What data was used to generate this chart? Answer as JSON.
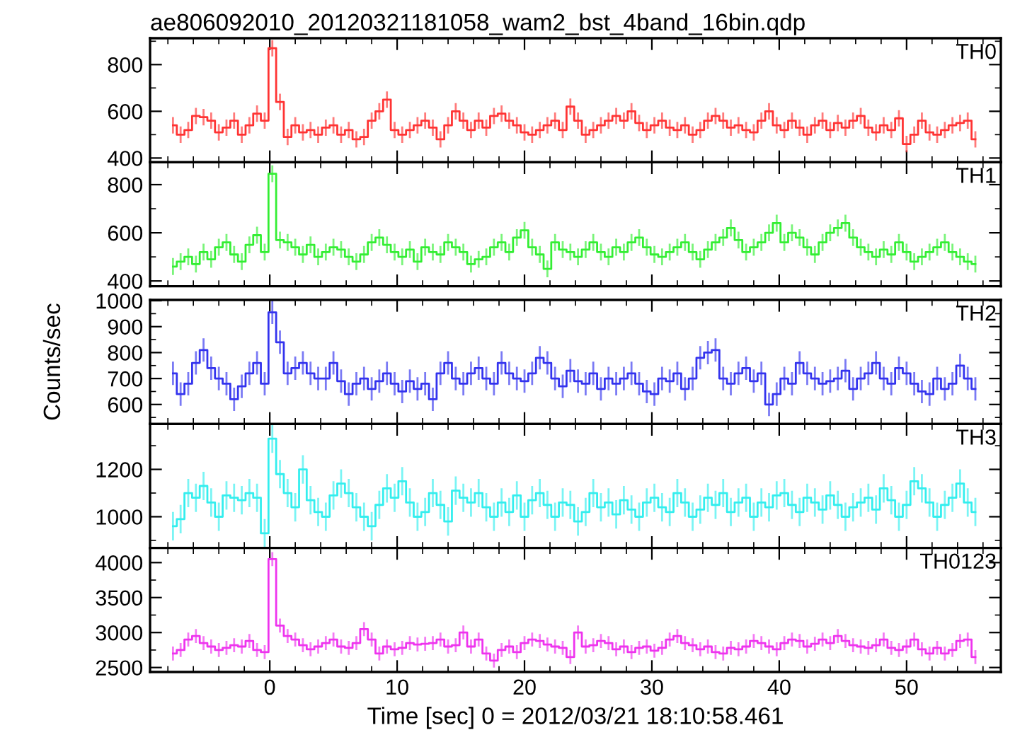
{
  "chart_data": [
    {
      "type": "step",
      "title": "ae806092010_20120321181058_wam2_bst_4band_16bin.qdp",
      "tick_labels": "y",
      "xlim": [
        -9.4,
        57.4
      ],
      "xticks": [
        0,
        10,
        20,
        30,
        40,
        50
      ],
      "ylim": [
        382,
        913
      ],
      "yticks": [
        400,
        600,
        800
      ],
      "x": [
        -7.6,
        -7.0,
        -6.4,
        -5.8,
        -5.2,
        -4.6,
        -4.0,
        -3.4,
        -2.8,
        -2.2,
        -1.6,
        -1.0,
        -0.4,
        0.2,
        0.8,
        1.4,
        2.0,
        2.6,
        3.2,
        3.8,
        4.4,
        5.0,
        5.6,
        6.2,
        6.8,
        7.4,
        8.0,
        8.6,
        9.2,
        9.8,
        10.4,
        11.0,
        11.6,
        12.2,
        12.8,
        13.4,
        14.0,
        14.6,
        15.2,
        15.8,
        16.4,
        17.0,
        17.6,
        18.2,
        18.8,
        19.4,
        20.0,
        20.6,
        21.2,
        21.8,
        22.4,
        23.0,
        23.6,
        24.2,
        24.8,
        25.4,
        26.0,
        26.6,
        27.2,
        27.8,
        28.4,
        29.0,
        29.6,
        30.2,
        30.8,
        31.4,
        32.0,
        32.6,
        33.2,
        33.8,
        34.4,
        35.0,
        35.6,
        36.2,
        36.8,
        37.4,
        38.0,
        38.6,
        39.2,
        39.8,
        40.4,
        41.0,
        41.6,
        42.2,
        42.8,
        43.4,
        44.0,
        44.6,
        45.2,
        45.8,
        46.4,
        47.0,
        47.6,
        48.2,
        48.8,
        49.4,
        50.0,
        50.6,
        51.2,
        51.8,
        52.4,
        53.0,
        53.6,
        54.2,
        54.8,
        55.4
      ],
      "series": [
        {
          "name": "TH0",
          "color": "#ff3333",
          "values": [
            540,
            500,
            520,
            580,
            575,
            560,
            510,
            530,
            560,
            500,
            540,
            590,
            560,
            870,
            640,
            490,
            540,
            510,
            520,
            500,
            530,
            540,
            500,
            520,
            480,
            490,
            560,
            600,
            650,
            520,
            500,
            520,
            540,
            560,
            530,
            480,
            540,
            600,
            560,
            520,
            560,
            530,
            580,
            590,
            560,
            540,
            510,
            500,
            520,
            540,
            560,
            520,
            620,
            560,
            500,
            520,
            540,
            560,
            580,
            560,
            600,
            550,
            520,
            540,
            560,
            530,
            520,
            540,
            500,
            520,
            560,
            580,
            560,
            530,
            540,
            520,
            510,
            560,
            600,
            540,
            520,
            560,
            530,
            500,
            540,
            560,
            520,
            550,
            530,
            560,
            580,
            530,
            510,
            540,
            520,
            570,
            460,
            500,
            560,
            510,
            500,
            520,
            540,
            550,
            560,
            480
          ],
          "errors": [
            35,
            35,
            35,
            35,
            35,
            35,
            35,
            35,
            35,
            35,
            35,
            35,
            35,
            35,
            35,
            35,
            35,
            35,
            35,
            35,
            35,
            35,
            35,
            35,
            35,
            35,
            35,
            35,
            35,
            35,
            35,
            35,
            35,
            35,
            35,
            35,
            35,
            35,
            35,
            35,
            35,
            35,
            35,
            35,
            35,
            35,
            35,
            35,
            35,
            35,
            35,
            35,
            35,
            35,
            35,
            35,
            35,
            35,
            35,
            35,
            35,
            35,
            35,
            35,
            35,
            35,
            35,
            35,
            35,
            35,
            35,
            35,
            35,
            35,
            35,
            35,
            35,
            35,
            35,
            35,
            35,
            35,
            35,
            35,
            35,
            35,
            35,
            35,
            35,
            35,
            35,
            35,
            35,
            35,
            35,
            35,
            35,
            35,
            35,
            35,
            35,
            35,
            35,
            35,
            35,
            35
          ]
        }
      ]
    },
    {
      "type": "step",
      "tick_labels": "y",
      "xlim": [
        -9.4,
        57.4
      ],
      "xticks": [
        0,
        10,
        20,
        30,
        40,
        50
      ],
      "ylim": [
        378,
        893
      ],
      "yticks": [
        400,
        600,
        800
      ],
      "x": [
        -7.6,
        -7.0,
        -6.4,
        -5.8,
        -5.2,
        -4.6,
        -4.0,
        -3.4,
        -2.8,
        -2.2,
        -1.6,
        -1.0,
        -0.4,
        0.2,
        0.8,
        1.4,
        2.0,
        2.6,
        3.2,
        3.8,
        4.4,
        5.0,
        5.6,
        6.2,
        6.8,
        7.4,
        8.0,
        8.6,
        9.2,
        9.8,
        10.4,
        11.0,
        11.6,
        12.2,
        12.8,
        13.4,
        14.0,
        14.6,
        15.2,
        15.8,
        16.4,
        17.0,
        17.6,
        18.2,
        18.8,
        19.4,
        20.0,
        20.6,
        21.2,
        21.8,
        22.4,
        23.0,
        23.6,
        24.2,
        24.8,
        25.4,
        26.0,
        26.6,
        27.2,
        27.8,
        28.4,
        29.0,
        29.6,
        30.2,
        30.8,
        31.4,
        32.0,
        32.6,
        33.2,
        33.8,
        34.4,
        35.0,
        35.6,
        36.2,
        36.8,
        37.4,
        38.0,
        38.6,
        39.2,
        39.8,
        40.4,
        41.0,
        41.6,
        42.2,
        42.8,
        43.4,
        44.0,
        44.6,
        45.2,
        45.8,
        46.4,
        47.0,
        47.6,
        48.2,
        48.8,
        49.4,
        50.0,
        50.6,
        51.2,
        51.8,
        52.4,
        53.0,
        53.6,
        54.2,
        54.8,
        55.4
      ],
      "series": [
        {
          "name": "TH1",
          "color": "#33ee33",
          "values": [
            460,
            480,
            500,
            470,
            520,
            490,
            540,
            560,
            510,
            480,
            550,
            590,
            520,
            845,
            570,
            560,
            540,
            510,
            550,
            500,
            520,
            540,
            530,
            500,
            480,
            510,
            560,
            580,
            550,
            520,
            500,
            530,
            480,
            540,
            520,
            510,
            560,
            540,
            520,
            470,
            490,
            500,
            540,
            560,
            520,
            580,
            610,
            540,
            510,
            450,
            560,
            530,
            520,
            500,
            530,
            560,
            520,
            500,
            540,
            520,
            560,
            580,
            540,
            510,
            500,
            520,
            540,
            560,
            520,
            490,
            530,
            560,
            580,
            620,
            570,
            520,
            540,
            560,
            600,
            640,
            560,
            600,
            580,
            540,
            510,
            560,
            600,
            620,
            640,
            580,
            540,
            520,
            500,
            530,
            510,
            560,
            520,
            480,
            500,
            520,
            540,
            560,
            520,
            500,
            480,
            470
          ],
          "errors": [
            35,
            35,
            35,
            35,
            35,
            35,
            35,
            35,
            35,
            35,
            35,
            35,
            35,
            35,
            35,
            35,
            35,
            35,
            35,
            35,
            35,
            35,
            35,
            35,
            35,
            35,
            35,
            35,
            35,
            35,
            35,
            35,
            35,
            35,
            35,
            35,
            35,
            35,
            35,
            35,
            35,
            35,
            35,
            35,
            35,
            35,
            35,
            35,
            35,
            35,
            35,
            35,
            35,
            35,
            35,
            35,
            35,
            35,
            35,
            35,
            35,
            35,
            35,
            35,
            35,
            35,
            35,
            35,
            35,
            35,
            35,
            35,
            35,
            35,
            35,
            35,
            35,
            35,
            35,
            35,
            35,
            35,
            35,
            35,
            35,
            35,
            35,
            35,
            35,
            35,
            35,
            35,
            35,
            35,
            35,
            35,
            35,
            35,
            35,
            35,
            35,
            35,
            35,
            35,
            35,
            35
          ]
        }
      ]
    },
    {
      "type": "step",
      "ylabel": "Counts/sec",
      "tick_labels": "y",
      "xlim": [
        -9.4,
        57.4
      ],
      "xticks": [
        0,
        10,
        20,
        30,
        40,
        50
      ],
      "ylim": [
        525,
        1003
      ],
      "yticks": [
        600,
        700,
        800,
        900,
        1000
      ],
      "x": [
        -7.6,
        -7.0,
        -6.4,
        -5.8,
        -5.2,
        -4.6,
        -4.0,
        -3.4,
        -2.8,
        -2.2,
        -1.6,
        -1.0,
        -0.4,
        0.2,
        0.8,
        1.4,
        2.0,
        2.6,
        3.2,
        3.8,
        4.4,
        5.0,
        5.6,
        6.2,
        6.8,
        7.4,
        8.0,
        8.6,
        9.2,
        9.8,
        10.4,
        11.0,
        11.6,
        12.2,
        12.8,
        13.4,
        14.0,
        14.6,
        15.2,
        15.8,
        16.4,
        17.0,
        17.6,
        18.2,
        18.8,
        19.4,
        20.0,
        20.6,
        21.2,
        21.8,
        22.4,
        23.0,
        23.6,
        24.2,
        24.8,
        25.4,
        26.0,
        26.6,
        27.2,
        27.8,
        28.4,
        29.0,
        29.6,
        30.2,
        30.8,
        31.4,
        32.0,
        32.6,
        33.2,
        33.8,
        34.4,
        35.0,
        35.6,
        36.2,
        36.8,
        37.4,
        38.0,
        38.6,
        39.2,
        39.8,
        40.4,
        41.0,
        41.6,
        42.2,
        42.8,
        43.4,
        44.0,
        44.6,
        45.2,
        45.8,
        46.4,
        47.0,
        47.6,
        48.2,
        48.8,
        49.4,
        50.0,
        50.6,
        51.2,
        51.8,
        52.4,
        53.0,
        53.6,
        54.2,
        54.8,
        55.4
      ],
      "series": [
        {
          "name": "TH2",
          "color": "#3333ee",
          "values": [
            720,
            640,
            680,
            760,
            810,
            740,
            700,
            680,
            620,
            670,
            720,
            760,
            680,
            955,
            840,
            720,
            740,
            760,
            720,
            700,
            700,
            760,
            690,
            640,
            680,
            700,
            660,
            690,
            720,
            680,
            650,
            690,
            660,
            680,
            620,
            720,
            760,
            700,
            680,
            720,
            740,
            700,
            680,
            760,
            720,
            700,
            690,
            720,
            780,
            760,
            700,
            670,
            730,
            690,
            680,
            720,
            660,
            700,
            680,
            700,
            720,
            680,
            650,
            640,
            700,
            690,
            720,
            660,
            700,
            780,
            800,
            810,
            700,
            680,
            720,
            740,
            690,
            720,
            600,
            640,
            700,
            680,
            760,
            720,
            700,
            680,
            690,
            700,
            730,
            660,
            700,
            720,
            760,
            700,
            680,
            740,
            720,
            680,
            650,
            640,
            700,
            660,
            680,
            750,
            700,
            660
          ],
          "errors": [
            45,
            45,
            45,
            45,
            45,
            45,
            45,
            45,
            45,
            45,
            45,
            45,
            45,
            45,
            45,
            45,
            45,
            45,
            45,
            45,
            45,
            45,
            45,
            45,
            45,
            45,
            45,
            45,
            45,
            45,
            45,
            45,
            45,
            45,
            45,
            45,
            45,
            45,
            45,
            45,
            45,
            45,
            45,
            45,
            45,
            45,
            45,
            45,
            45,
            45,
            45,
            45,
            45,
            45,
            45,
            45,
            45,
            45,
            45,
            45,
            45,
            45,
            45,
            45,
            45,
            45,
            45,
            45,
            45,
            45,
            45,
            45,
            45,
            45,
            45,
            45,
            45,
            45,
            45,
            45,
            45,
            45,
            45,
            45,
            45,
            45,
            45,
            45,
            45,
            45,
            45,
            45,
            45,
            45,
            45,
            45,
            45,
            45,
            45,
            45,
            45,
            45,
            45,
            45,
            45,
            45
          ]
        }
      ]
    },
    {
      "type": "step",
      "tick_labels": "y",
      "xlim": [
        -9.4,
        57.4
      ],
      "xticks": [
        0,
        10,
        20,
        30,
        40,
        50
      ],
      "ylim": [
        868,
        1392
      ],
      "yticks": [
        1000,
        1200
      ],
      "x": [
        -7.6,
        -7.0,
        -6.4,
        -5.8,
        -5.2,
        -4.6,
        -4.0,
        -3.4,
        -2.8,
        -2.2,
        -1.6,
        -1.0,
        -0.4,
        0.2,
        0.8,
        1.4,
        2.0,
        2.6,
        3.2,
        3.8,
        4.4,
        5.0,
        5.6,
        6.2,
        6.8,
        7.4,
        8.0,
        8.6,
        9.2,
        9.8,
        10.4,
        11.0,
        11.6,
        12.2,
        12.8,
        13.4,
        14.0,
        14.6,
        15.2,
        15.8,
        16.4,
        17.0,
        17.6,
        18.2,
        18.8,
        19.4,
        20.0,
        20.6,
        21.2,
        21.8,
        22.4,
        23.0,
        23.6,
        24.2,
        24.8,
        25.4,
        26.0,
        26.6,
        27.2,
        27.8,
        28.4,
        29.0,
        29.6,
        30.2,
        30.8,
        31.4,
        32.0,
        32.6,
        33.2,
        33.8,
        34.4,
        35.0,
        35.6,
        36.2,
        36.8,
        37.4,
        38.0,
        38.6,
        39.2,
        39.8,
        40.4,
        41.0,
        41.6,
        42.2,
        42.8,
        43.4,
        44.0,
        44.6,
        45.2,
        45.8,
        46.4,
        47.0,
        47.6,
        48.2,
        48.8,
        49.4,
        50.0,
        50.6,
        51.2,
        51.8,
        52.4,
        53.0,
        53.6,
        54.2,
        54.8,
        55.4
      ],
      "series": [
        {
          "name": "TH3",
          "color": "#33eeee",
          "values": [
            960,
            990,
            1100,
            1080,
            1130,
            1060,
            1000,
            1090,
            1080,
            1070,
            1100,
            1080,
            930,
            1330,
            1180,
            1100,
            1040,
            1200,
            1070,
            1020,
            1000,
            1090,
            1140,
            1100,
            1040,
            1000,
            960,
            1050,
            1120,
            1080,
            1150,
            1060,
            1000,
            1020,
            1100,
            1050,
            980,
            1110,
            1080,
            1060,
            1100,
            1040,
            1000,
            1060,
            1020,
            1090,
            1000,
            1070,
            1100,
            1050,
            1000,
            1060,
            1050,
            980,
            1020,
            1100,
            1040,
            1060,
            1010,
            1070,
            1030,
            1000,
            1060,
            1080,
            1040,
            1020,
            1100,
            1060,
            1000,
            1030,
            1080,
            1050,
            1100,
            1020,
            1060,
            1080,
            1000,
            1060,
            1040,
            1090,
            1100,
            1050,
            1020,
            1080,
            1060,
            1030,
            1090,
            1050,
            1000,
            1040,
            1060,
            1080,
            1030,
            1120,
            1070,
            1000,
            1050,
            1150,
            1120,
            1060,
            1000,
            1050,
            1080,
            1140,
            1060,
            1020
          ],
          "errors": [
            60,
            60,
            60,
            60,
            60,
            60,
            60,
            60,
            60,
            60,
            60,
            60,
            60,
            60,
            60,
            60,
            60,
            60,
            60,
            60,
            60,
            60,
            60,
            60,
            60,
            60,
            60,
            60,
            60,
            60,
            60,
            60,
            60,
            60,
            60,
            60,
            60,
            60,
            60,
            60,
            60,
            60,
            60,
            60,
            60,
            60,
            60,
            60,
            60,
            60,
            60,
            60,
            60,
            60,
            60,
            60,
            60,
            60,
            60,
            60,
            60,
            60,
            60,
            60,
            60,
            60,
            60,
            60,
            60,
            60,
            60,
            60,
            60,
            60,
            60,
            60,
            60,
            60,
            60,
            60,
            60,
            60,
            60,
            60,
            60,
            60,
            60,
            60,
            60,
            60,
            60,
            60,
            60,
            60,
            60,
            60,
            60,
            60,
            60,
            60,
            60,
            60,
            60,
            60,
            60,
            60
          ]
        }
      ]
    },
    {
      "type": "step",
      "xlabel": "Time [sec] 0 = 2012/03/21 18:10:58.461",
      "xlim": [
        -9.4,
        57.4
      ],
      "xticks": [
        0,
        10,
        20,
        30,
        40,
        50
      ],
      "ylim": [
        2436,
        4209
      ],
      "yticks": [
        2500,
        3000,
        3500,
        4000
      ],
      "x": [
        -7.6,
        -7.0,
        -6.4,
        -5.8,
        -5.2,
        -4.6,
        -4.0,
        -3.4,
        -2.8,
        -2.2,
        -1.6,
        -1.0,
        -0.4,
        0.2,
        0.8,
        1.4,
        2.0,
        2.6,
        3.2,
        3.8,
        4.4,
        5.0,
        5.6,
        6.2,
        6.8,
        7.4,
        8.0,
        8.6,
        9.2,
        9.8,
        10.4,
        11.0,
        11.6,
        12.2,
        12.8,
        13.4,
        14.0,
        14.6,
        15.2,
        15.8,
        16.4,
        17.0,
        17.6,
        18.2,
        18.8,
        19.4,
        20.0,
        20.6,
        21.2,
        21.8,
        22.4,
        23.0,
        23.6,
        24.2,
        24.8,
        25.4,
        26.0,
        26.6,
        27.2,
        27.8,
        28.4,
        29.0,
        29.6,
        30.2,
        30.8,
        31.4,
        32.0,
        32.6,
        33.2,
        33.8,
        34.4,
        35.0,
        35.6,
        36.2,
        36.8,
        37.4,
        38.0,
        38.6,
        39.2,
        39.8,
        40.4,
        41.0,
        41.6,
        42.2,
        42.8,
        43.4,
        44.0,
        44.6,
        45.2,
        45.8,
        46.4,
        47.0,
        47.6,
        48.2,
        48.8,
        49.4,
        50.0,
        50.6,
        51.2,
        51.8,
        52.4,
        53.0,
        53.6,
        54.2,
        54.8,
        55.4
      ],
      "series": [
        {
          "name": "TH0123",
          "color": "#ee33ee",
          "values": [
            2700,
            2750,
            2900,
            2950,
            2850,
            2800,
            2750,
            2780,
            2820,
            2800,
            2880,
            2750,
            2720,
            4050,
            3100,
            2950,
            2900,
            2820,
            2760,
            2800,
            2850,
            2900,
            2800,
            2780,
            2850,
            3050,
            2900,
            2700,
            2800,
            2760,
            2780,
            2850,
            2830,
            2840,
            2850,
            2900,
            2800,
            2820,
            3000,
            2800,
            2900,
            2700,
            2600,
            2750,
            2800,
            2720,
            2850,
            2900,
            2880,
            2830,
            2800,
            2780,
            2650,
            3000,
            2800,
            2820,
            2880,
            2850,
            2760,
            2800,
            2720,
            2780,
            2800,
            2740,
            2780,
            2900,
            2950,
            2850,
            2820,
            2760,
            2800,
            2720,
            2700,
            2780,
            2760,
            2800,
            2880,
            2850,
            2800,
            2760,
            2850,
            2900,
            2880,
            2800,
            2840,
            2900,
            2850,
            2950,
            2880,
            2820,
            2800,
            2780,
            2820,
            2900,
            2780,
            2750,
            2800,
            2900,
            2760,
            2700,
            2780,
            2700,
            2750,
            2880,
            2900,
            2650
          ],
          "errors": [
            100,
            100,
            100,
            100,
            100,
            100,
            100,
            100,
            100,
            100,
            100,
            100,
            100,
            100,
            100,
            100,
            100,
            100,
            100,
            100,
            100,
            100,
            100,
            100,
            100,
            100,
            100,
            100,
            100,
            100,
            100,
            100,
            100,
            100,
            100,
            100,
            100,
            100,
            100,
            100,
            100,
            100,
            100,
            100,
            100,
            100,
            100,
            100,
            100,
            100,
            100,
            100,
            100,
            100,
            100,
            100,
            100,
            100,
            100,
            100,
            100,
            100,
            100,
            100,
            100,
            100,
            100,
            100,
            100,
            100,
            100,
            100,
            100,
            100,
            100,
            100,
            100,
            100,
            100,
            100,
            100,
            100,
            100,
            100,
            100,
            100,
            100,
            100,
            100,
            100,
            100,
            100,
            100,
            100,
            100,
            100,
            100,
            100,
            100,
            100,
            100,
            100,
            100,
            100,
            100,
            100
          ]
        }
      ]
    }
  ]
}
